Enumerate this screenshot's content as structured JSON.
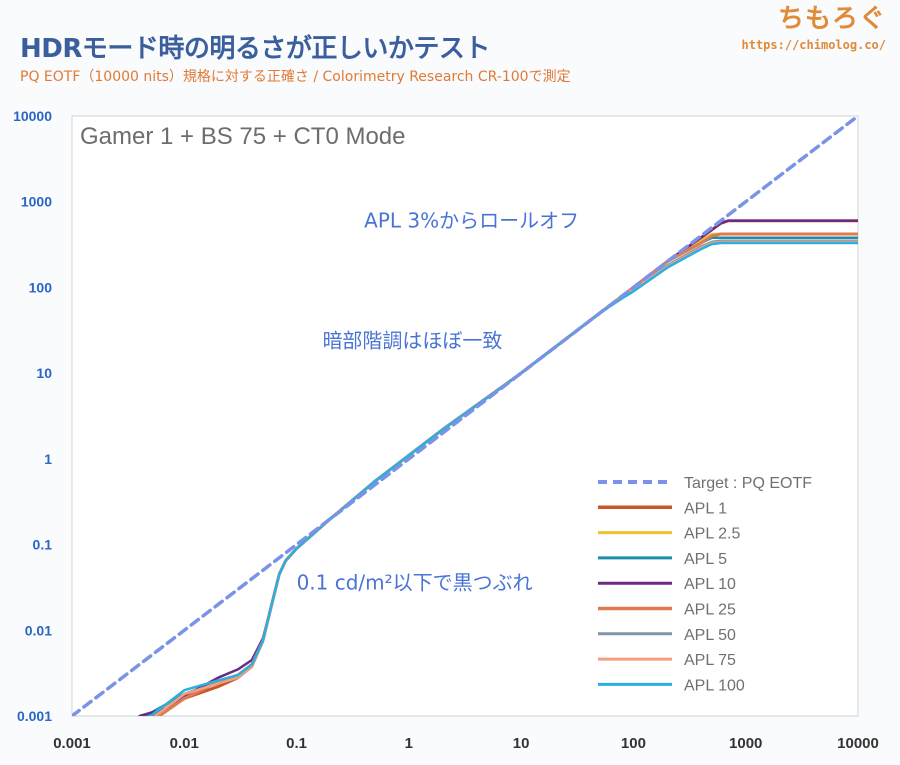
{
  "header": {
    "title": "HDRモード時の明るさが正しいかテスト",
    "subtitle": "PQ EOTF（10000 nits）規格に対する正確さ / Colorimetry Research CR-100で測定",
    "brand_name": "ちもろぐ",
    "brand_url": "https://chimolog.co/"
  },
  "colors": {
    "title": "#3a5f9c",
    "subtitle": "#e07a36",
    "tick": "#2a66c4",
    "annotation": "#4a74d4"
  },
  "chart_data": {
    "type": "line",
    "mode_label": "Gamer 1 + BS 75 + CT0 Mode",
    "x_scale": "log",
    "y_scale": "log",
    "xlim": [
      0.001,
      10000
    ],
    "ylim": [
      0.001,
      10000
    ],
    "x_ticks": [
      "0.001",
      "0.01",
      "0.1",
      "1",
      "10",
      "100",
      "1000",
      "10000"
    ],
    "y_ticks": [
      "0.001",
      "0.01",
      "0.1",
      "1",
      "10",
      "100",
      "1000",
      "10000"
    ],
    "grid": "horizontal dashed",
    "legend_position": "bottom-right",
    "annotations": [
      {
        "text": "APL 3%からロールオフ",
        "x": 0.4,
        "y": 500
      },
      {
        "text": "暗部階調はほぼ一致",
        "x": 0.17,
        "y": 20
      },
      {
        "text": "0.1 cd/m²以下で黒つぶれ",
        "x": 0.1,
        "y": 0.03
      }
    ],
    "series": [
      {
        "name": "Target : PQ EOTF",
        "color": "#7b93e6",
        "dashed": true,
        "width": 3.5,
        "x": [
          0.001,
          10000
        ],
        "y": [
          0.001,
          10000
        ]
      },
      {
        "name": "APL 1",
        "color": "#c9572a",
        "width": 3,
        "x": [
          0.005,
          0.01,
          0.02,
          0.03,
          0.04,
          0.05,
          0.06,
          0.07,
          0.08,
          0.1,
          0.2,
          0.5,
          1,
          2,
          5,
          10,
          20,
          50,
          100,
          200,
          400,
          500,
          600,
          700,
          1000,
          10000
        ],
        "y": [
          0.001,
          0.0016,
          0.0022,
          0.0028,
          0.0038,
          0.0075,
          0.02,
          0.045,
          0.065,
          0.09,
          0.2,
          0.55,
          1.1,
          2.2,
          5.2,
          10,
          20,
          50,
          100,
          200,
          380,
          470,
          560,
          600,
          600,
          600
        ]
      },
      {
        "name": "APL 2.5",
        "color": "#f2c12e",
        "width": 2.5,
        "x": [
          0.0045,
          0.01,
          0.02,
          0.03,
          0.04,
          0.05,
          0.06,
          0.07,
          0.08,
          0.1,
          0.2,
          0.5,
          1,
          2,
          5,
          10,
          20,
          50,
          100,
          200,
          400,
          500,
          600,
          700,
          1000,
          10000
        ],
        "y": [
          0.001,
          0.0018,
          0.0025,
          0.003,
          0.004,
          0.0075,
          0.02,
          0.045,
          0.065,
          0.09,
          0.2,
          0.55,
          1.1,
          2.2,
          5.2,
          10,
          20,
          50,
          100,
          200,
          350,
          420,
          420,
          420,
          420,
          420
        ]
      },
      {
        "name": "APL 5",
        "color": "#1f8ca8",
        "width": 2.5,
        "x": [
          0.0045,
          0.01,
          0.02,
          0.03,
          0.04,
          0.05,
          0.06,
          0.07,
          0.08,
          0.1,
          0.2,
          0.5,
          1,
          2,
          5,
          10,
          20,
          50,
          100,
          200,
          400,
          500,
          600,
          700,
          1000,
          10000
        ],
        "y": [
          0.001,
          0.0018,
          0.0025,
          0.003,
          0.004,
          0.0075,
          0.02,
          0.045,
          0.065,
          0.09,
          0.2,
          0.55,
          1.1,
          2.2,
          5.2,
          10,
          20,
          50,
          100,
          200,
          330,
          380,
          380,
          380,
          380,
          380
        ]
      },
      {
        "name": "APL 10",
        "color": "#6d2a84",
        "width": 2.5,
        "x": [
          0.004,
          0.008,
          0.01,
          0.02,
          0.03,
          0.04,
          0.05,
          0.06,
          0.07,
          0.08,
          0.1,
          0.2,
          0.5,
          1,
          2,
          5,
          10,
          20,
          50,
          100,
          200,
          400,
          500,
          600,
          700,
          1000,
          10000
        ],
        "y": [
          0.001,
          0.0013,
          0.0017,
          0.0028,
          0.0035,
          0.0045,
          0.008,
          0.02,
          0.045,
          0.065,
          0.09,
          0.2,
          0.55,
          1.1,
          2.2,
          5.2,
          10,
          20,
          50,
          100,
          200,
          380,
          470,
          560,
          600,
          600,
          600
        ]
      },
      {
        "name": "APL 25",
        "color": "#e07a50",
        "width": 3,
        "x": [
          0.006,
          0.01,
          0.02,
          0.03,
          0.04,
          0.05,
          0.06,
          0.07,
          0.08,
          0.1,
          0.2,
          0.5,
          1,
          2,
          5,
          10,
          20,
          50,
          100,
          200,
          400,
          500,
          600,
          700,
          1000,
          10000
        ],
        "y": [
          0.001,
          0.0016,
          0.0025,
          0.003,
          0.004,
          0.0075,
          0.02,
          0.045,
          0.065,
          0.09,
          0.2,
          0.55,
          1.1,
          2.2,
          5.2,
          10,
          20,
          50,
          100,
          200,
          330,
          400,
          420,
          420,
          420,
          420
        ]
      },
      {
        "name": "APL 50",
        "color": "#7f96aa",
        "width": 2.5,
        "x": [
          0.0055,
          0.01,
          0.02,
          0.03,
          0.04,
          0.05,
          0.06,
          0.07,
          0.08,
          0.1,
          0.2,
          0.5,
          1,
          2,
          5,
          10,
          20,
          50,
          100,
          200,
          400,
          500,
          600,
          700,
          1000,
          10000
        ],
        "y": [
          0.001,
          0.0018,
          0.0024,
          0.0028,
          0.0038,
          0.0075,
          0.02,
          0.045,
          0.065,
          0.09,
          0.2,
          0.55,
          1.1,
          2.2,
          5.2,
          10,
          20,
          50,
          95,
          180,
          300,
          340,
          350,
          350,
          350,
          350
        ]
      },
      {
        "name": "APL 75",
        "color": "#f0a080",
        "width": 2.5,
        "x": [
          0.0055,
          0.01,
          0.02,
          0.03,
          0.04,
          0.05,
          0.06,
          0.07,
          0.08,
          0.1,
          0.2,
          0.5,
          1,
          2,
          5,
          10,
          20,
          50,
          100,
          200,
          400,
          500,
          600,
          700,
          1000,
          10000
        ],
        "y": [
          0.001,
          0.0018,
          0.0024,
          0.0028,
          0.0038,
          0.0075,
          0.02,
          0.045,
          0.065,
          0.09,
          0.2,
          0.55,
          1.1,
          2.2,
          5.2,
          10,
          20,
          50,
          95,
          175,
          290,
          330,
          340,
          340,
          340,
          340
        ]
      },
      {
        "name": "APL 100",
        "color": "#2ab0e0",
        "width": 2.5,
        "x": [
          0.005,
          0.01,
          0.02,
          0.03,
          0.04,
          0.05,
          0.06,
          0.07,
          0.08,
          0.1,
          0.2,
          0.5,
          1,
          2,
          5,
          10,
          20,
          50,
          80,
          100,
          200,
          400,
          500,
          600,
          700,
          1000,
          10000
        ],
        "y": [
          0.001,
          0.002,
          0.0026,
          0.003,
          0.004,
          0.0075,
          0.02,
          0.045,
          0.065,
          0.09,
          0.2,
          0.55,
          1.1,
          2.2,
          5.2,
          10,
          20,
          50,
          75,
          90,
          170,
          280,
          320,
          330,
          330,
          330,
          330
        ]
      }
    ]
  }
}
